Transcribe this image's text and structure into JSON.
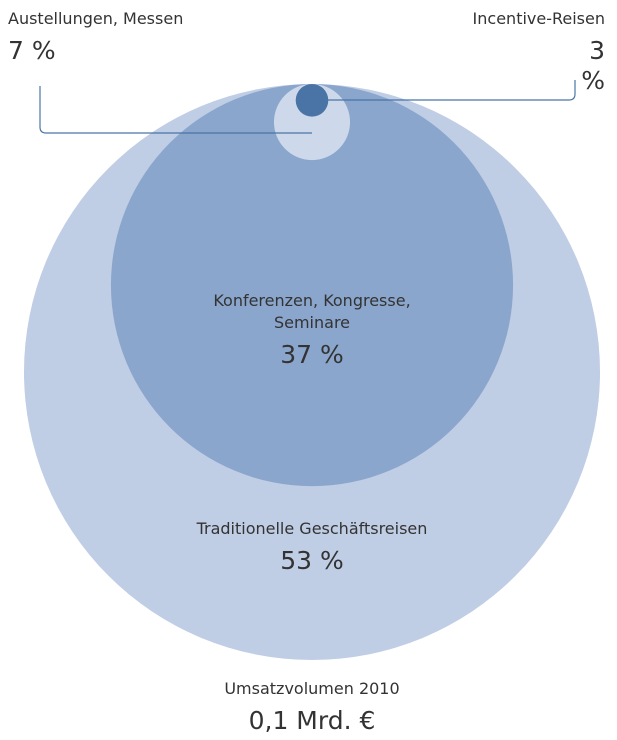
{
  "chart_data": {
    "type": "nested-circles",
    "categories": [
      "Traditionelle Geschäftsreisen",
      "Konferenzen, Kongresse, Seminare",
      "Austellungen, Messen",
      "Incentive-Reisen"
    ],
    "values": [
      53,
      37,
      7,
      3
    ],
    "value_labels": [
      "53 %",
      "37 %",
      "7 %",
      "3 %"
    ],
    "colors": [
      "#bfcde5",
      "#8aa6cc",
      "#cdd9ea",
      "#4a74a6"
    ],
    "footer_title": "Umsatzvolumen 2010",
    "footer_value": "0,1 Mrd. €"
  }
}
